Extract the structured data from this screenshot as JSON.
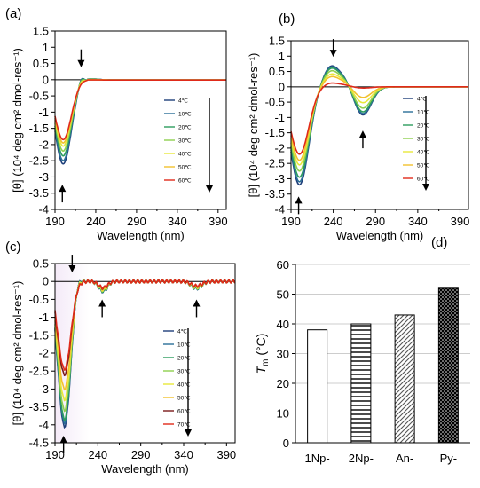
{
  "chart_data": [
    {
      "panel": "(a)",
      "type": "line",
      "xlabel": "Wavelength (nm)",
      "ylabel": "[θ] (10⁴ deg cm² dmol-res⁻¹)",
      "xlim": [
        190,
        400
      ],
      "ylim": [
        -4,
        1.5
      ],
      "xticks": [
        190,
        240,
        290,
        340,
        390
      ],
      "yticks": [
        -4,
        -3.5,
        -3,
        -2.5,
        -2,
        -1.5,
        -1,
        -0.5,
        0,
        0.5,
        1,
        1.5
      ],
      "legend_placement": "right",
      "series": [
        {
          "name": "4℃",
          "color": "#1f3f7a",
          "min": -2.6,
          "peak": 0.22
        },
        {
          "name": "10℃",
          "color": "#2a6e98",
          "min": -2.5,
          "peak": 0.21
        },
        {
          "name": "20℃",
          "color": "#2c9c5e",
          "min": -2.35,
          "peak": 0.18
        },
        {
          "name": "30℃",
          "color": "#8fcf4e",
          "min": -2.2,
          "peak": 0.14
        },
        {
          "name": "40℃",
          "color": "#e8e83a",
          "min": -2.05,
          "peak": 0.09
        },
        {
          "name": "50℃",
          "color": "#f2c12e",
          "min": -1.95,
          "peak": 0.05
        },
        {
          "name": "60℃",
          "color": "#e02a1a",
          "min": -1.85,
          "peak": 0.02
        }
      ],
      "arrows": [
        {
          "wavelength": 222,
          "y": 0.55,
          "direction": "down"
        },
        {
          "wavelength": 199,
          "y": -3.4,
          "direction": "up"
        }
      ]
    },
    {
      "panel": "(b)",
      "type": "line",
      "xlabel": "Wavelength (nm)",
      "ylabel": "[θ] (10⁴ deg cm² dmol-res⁻¹)",
      "xlim": [
        190,
        400
      ],
      "ylim": [
        -4,
        1.5
      ],
      "xticks": [
        190,
        240,
        290,
        340,
        390
      ],
      "yticks": [
        -4,
        -3.5,
        -3,
        -2.5,
        -2,
        -1.5,
        -1,
        -0.5,
        0,
        0.5,
        1,
        1.5
      ],
      "legend_placement": "right",
      "series": [
        {
          "name": "4℃",
          "color": "#1f3f7a",
          "min": -3.2,
          "peak": 0.65,
          "trough": -0.92
        },
        {
          "name": "10℃",
          "color": "#2a6e98",
          "min": -3.1,
          "peak": 0.62,
          "trough": -0.88
        },
        {
          "name": "20℃",
          "color": "#2c9c5e",
          "min": -2.95,
          "peak": 0.58,
          "trough": -0.82
        },
        {
          "name": "30℃",
          "color": "#8fcf4e",
          "min": -2.75,
          "peak": 0.5,
          "trough": -0.7
        },
        {
          "name": "40℃",
          "color": "#e8e83a",
          "min": -2.55,
          "peak": 0.4,
          "trough": -0.52
        },
        {
          "name": "50℃",
          "color": "#f2c12e",
          "min": -2.4,
          "peak": 0.32,
          "trough": -0.35
        },
        {
          "name": "60℃",
          "color": "#e02a1a",
          "min": -2.2,
          "peak": 0.12,
          "trough": -0.04
        }
      ],
      "arrows": [
        {
          "wavelength": 240,
          "y": 1.15,
          "direction": "down"
        },
        {
          "wavelength": 275,
          "y": -1.6,
          "direction": "up"
        },
        {
          "wavelength": 199,
          "y": -3.75,
          "direction": "up"
        }
      ]
    },
    {
      "panel": "(c)",
      "type": "line",
      "xlabel": "Wavelength (nm)",
      "ylabel": "[θ] (10⁴ deg cm² dmol-res⁻¹)",
      "xlim": [
        190,
        400
      ],
      "ylim": [
        -4.5,
        0.5
      ],
      "xticks": [
        190,
        240,
        290,
        340,
        390
      ],
      "yticks": [
        -4.5,
        -4,
        -3.5,
        -3,
        -2.5,
        -2,
        -1.5,
        -1,
        -0.5,
        0,
        0.5
      ],
      "legend_placement": "right",
      "series": [
        {
          "name": "4℃",
          "color": "#1f3f7a",
          "min": -4.05,
          "peak": 0.3
        },
        {
          "name": "10℃",
          "color": "#2a6e98",
          "min": -3.95,
          "peak": 0.28
        },
        {
          "name": "20℃",
          "color": "#2c9c5e",
          "min": -3.85,
          "peak": 0.26
        },
        {
          "name": "30℃",
          "color": "#8fcf4e",
          "min": -3.6,
          "peak": 0.22
        },
        {
          "name": "40℃",
          "color": "#e8e83a",
          "min": -3.3,
          "peak": 0.18
        },
        {
          "name": "50℃",
          "color": "#f2c12e",
          "min": -3.0,
          "peak": 0.12
        },
        {
          "name": "60℃",
          "color": "#7a1a1a",
          "min": -2.6,
          "peak": 0.06
        },
        {
          "name": "70℃",
          "color": "#e02a1a",
          "min": -2.45,
          "peak": 0.04
        }
      ],
      "arrows": [
        {
          "wavelength": 210,
          "y": 0.4,
          "direction": "down"
        },
        {
          "wavelength": 245,
          "y": -0.65,
          "direction": "up"
        },
        {
          "wavelength": 355,
          "y": -0.65,
          "direction": "up"
        },
        {
          "wavelength": 200,
          "y": -4.45,
          "direction": "up"
        }
      ]
    },
    {
      "panel": "(d)",
      "type": "bar",
      "ylabel": "Tm (°C)",
      "ylim": [
        0,
        60
      ],
      "yticks": [
        0,
        10,
        20,
        30,
        40,
        50,
        60
      ],
      "grid": true,
      "categories": [
        "1Np-",
        "2Np-",
        "An-",
        "Py-"
      ],
      "values": [
        38,
        40,
        43,
        52
      ],
      "fills": [
        "empty",
        "horizontal-lines",
        "diagonal-lines",
        "dots"
      ]
    }
  ],
  "down_arrow_icon": "arrow-down-icon",
  "up_arrow_icon": "arrow-up-icon"
}
